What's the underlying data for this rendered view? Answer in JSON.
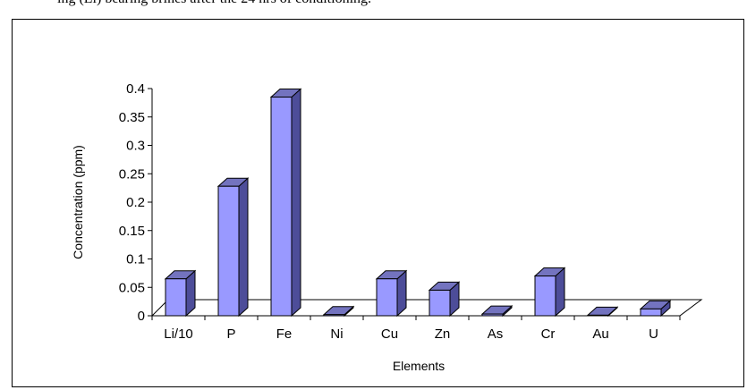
{
  "caption_fragment": "ing (Li) bearing brines after the 24 hrs of conditioning.",
  "chart_data": {
    "type": "bar",
    "style": "3d-column",
    "categories": [
      "Li/10",
      "P",
      "Fe",
      "Ni",
      "Cu",
      "Zn",
      "As",
      "Cr",
      "Au",
      "U"
    ],
    "values": [
      0.065,
      0.228,
      0.385,
      0.002,
      0.065,
      0.045,
      0.003,
      0.07,
      0.001,
      0.012
    ],
    "xlabel": "Elements",
    "ylabel": "Concentration (ppm)",
    "ylim": [
      0,
      0.4
    ],
    "yticks": [
      "0",
      "0.05",
      "0.1",
      "0.15",
      "0.2",
      "0.25",
      "0.3",
      "0.35",
      "0.4"
    ],
    "grid": false,
    "legend": false,
    "colors": {
      "front": "#9999ff",
      "side": "#4d4d99",
      "top": "#7373bf",
      "outline": "#000000"
    }
  }
}
